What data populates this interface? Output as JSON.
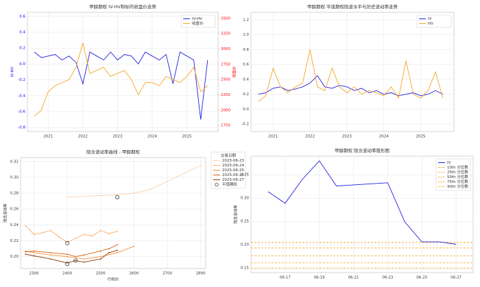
{
  "chart_data": [
    {
      "type": "line",
      "title": "甲醇期权 IV-HV和标的收盘价走势",
      "ylabel": "IV-HV",
      "y2label": "收盘价",
      "x": [
        2020.6,
        2020.8,
        2021.0,
        2021.2,
        2021.4,
        2021.6,
        2021.8,
        2022.0,
        2022.2,
        2022.4,
        2022.6,
        2022.8,
        2023.0,
        2023.2,
        2023.4,
        2023.6,
        2023.8,
        2024.0,
        2024.2,
        2024.4,
        2024.6,
        2024.8,
        2025.0,
        2025.2,
        2025.4,
        2025.6
      ],
      "series": [
        {
          "name": "IV-HV",
          "color": "#1f1fe0",
          "values": [
            0.15,
            0.08,
            0.1,
            0.12,
            0.05,
            0.1,
            0.02,
            -0.25,
            0.15,
            0.1,
            0.05,
            0.15,
            0.05,
            0.12,
            0.1,
            0.0,
            0.15,
            0.1,
            0.05,
            0.12,
            -0.25,
            0.15,
            0.1,
            0.05,
            -0.7,
            0.05
          ]
        },
        {
          "name": "收盘价",
          "color": "#f5a623",
          "axis": "y2",
          "values": [
            1900,
            2000,
            2300,
            2400,
            2450,
            2500,
            2700,
            3100,
            2600,
            2650,
            2700,
            2550,
            2600,
            2650,
            2500,
            2250,
            2450,
            2450,
            2400,
            2550,
            2500,
            2450,
            2550,
            2700,
            2300,
            2400
          ]
        }
      ],
      "xlim": [
        2020.4,
        2025.9
      ],
      "xticks": [
        2021,
        2022,
        2023,
        2024,
        2025
      ],
      "ylim": [
        -0.85,
        0.65
      ],
      "yticks": [
        -0.8,
        -0.6,
        -0.4,
        -0.2,
        {
          "value": 0,
          "label": "0.0"
        },
        0.2,
        0.4,
        0.6
      ],
      "y2lim": [
        1650,
        3600
      ],
      "y2ticks": [
        1750,
        2000,
        2250,
        2500,
        2750,
        3000,
        3250,
        3500
      ],
      "ytick_color": "blue",
      "y2tick_color": "red",
      "grid": true,
      "legend": "upper right"
    },
    {
      "type": "line",
      "title": "甲醇期权 平值期权隐波水平与历史波动率走势",
      "x": [
        2020.6,
        2020.8,
        2021.0,
        2021.2,
        2021.4,
        2021.6,
        2021.8,
        2022.0,
        2022.2,
        2022.4,
        2022.6,
        2022.8,
        2023.0,
        2023.2,
        2023.4,
        2023.6,
        2023.8,
        2024.0,
        2024.2,
        2024.4,
        2024.6,
        2024.8,
        2025.0,
        2025.2,
        2025.4,
        2025.6
      ],
      "series": [
        {
          "name": "IV",
          "color": "#1f1fe0",
          "values": [
            0.2,
            0.22,
            0.28,
            0.3,
            0.25,
            0.27,
            0.3,
            0.35,
            0.45,
            0.3,
            0.28,
            0.32,
            0.3,
            0.25,
            0.28,
            0.22,
            0.25,
            0.2,
            0.22,
            0.18,
            0.2,
            0.22,
            0.18,
            0.2,
            0.25,
            0.2
          ]
        },
        {
          "name": "HV",
          "color": "#f5a623",
          "values": [
            0.1,
            0.18,
            0.55,
            0.3,
            0.22,
            0.3,
            0.35,
            0.8,
            0.3,
            0.25,
            0.55,
            0.3,
            0.22,
            0.3,
            0.2,
            0.25,
            0.22,
            0.18,
            0.3,
            0.15,
            0.65,
            0.2,
            0.15,
            0.25,
            0.5,
            0.15
          ]
        }
      ],
      "xlim": [
        2020.4,
        2025.9
      ],
      "xticks": [
        2021,
        2022,
        2023,
        2024,
        2025
      ],
      "ylim": [
        -0.3,
        1.3
      ],
      "yticks": [
        -0.2,
        {
          "value": 0,
          "label": "0.0"
        },
        0.2,
        0.4,
        0.6,
        0.8,
        {
          "value": 1,
          "label": "1.0"
        },
        1.2
      ],
      "grid": true,
      "legend": "upper right"
    },
    {
      "type": "line",
      "title": "隐含波动率曲线 - 甲醇期权",
      "xlabel": "行权价",
      "ylabel": "隐含波动率",
      "legend_title": "交易日期",
      "series": [
        {
          "name": "2025-06-23",
          "color": "#fdd0a8",
          "x": [
            2400,
            2450,
            2500,
            2550,
            2600,
            2650,
            2700,
            2750,
            2800
          ],
          "values": [
            0.275,
            0.276,
            0.277,
            0.278,
            0.28,
            0.285,
            0.295,
            0.305,
            0.315
          ]
        },
        {
          "name": "2025-06-24",
          "color": "#fdae6b",
          "x": [
            2275,
            2300,
            2325,
            2350,
            2375,
            2400,
            2425,
            2450,
            2475,
            2500,
            2525,
            2550
          ],
          "values": [
            0.239,
            0.228,
            0.23,
            0.233,
            0.225,
            0.218,
            0.223,
            0.228,
            0.226,
            0.233,
            0.229,
            0.232
          ]
        },
        {
          "name": "2025-06-25",
          "color": "#f98e3a",
          "x": [
            2275,
            2300,
            2350,
            2400,
            2450,
            2500,
            2550,
            2600
          ],
          "values": [
            0.207,
            0.205,
            0.202,
            0.2,
            0.197,
            0.2,
            0.205,
            0.213
          ]
        },
        {
          "name": "2025-06-26",
          "color": "#d95f0e",
          "x": [
            2275,
            2300,
            2350,
            2400,
            2425,
            2450,
            2500,
            2525,
            2550
          ],
          "values": [
            0.206,
            0.207,
            0.205,
            0.203,
            0.2,
            0.202,
            0.207,
            0.21,
            0.215
          ]
        },
        {
          "name": "2025-06-27",
          "color": "#8c3a0a",
          "x": [
            2275,
            2300,
            2350,
            2400,
            2425,
            2450,
            2500,
            2525,
            2550
          ],
          "values": [
            0.203,
            0.201,
            0.197,
            0.192,
            0.195,
            0.193,
            0.197,
            0.205,
            0.208
          ]
        }
      ],
      "atm": {
        "name": "平值期权",
        "x": [
          2550,
          2400,
          2400,
          2425
        ],
        "values": [
          0.275,
          0.217,
          0.191,
          0.195
        ]
      },
      "markers": true,
      "xlim": [
        2260,
        2815
      ],
      "xticks": [
        2300,
        2400,
        2500,
        2600,
        2700,
        2800
      ],
      "ylim": [
        0.185,
        0.325
      ],
      "yticks": [
        {
          "value": 0.2,
          "label": "0.20"
        },
        0.22,
        0.24,
        0.26,
        0.28,
        {
          "value": 0.3,
          "label": "0.30"
        },
        0.32
      ],
      "grid": true,
      "legend": "outside right"
    },
    {
      "type": "line",
      "title": "甲醇期权 隐含波动率锥形图",
      "ylabel": "隐含波动率",
      "x": [
        "06-16",
        "06-17",
        "06-18",
        "06-19",
        "06-20",
        "06-23",
        "06-24",
        "06-25",
        "06-26",
        "06-27"
      ],
      "series": [
        {
          "name": "IV",
          "color": "#1f1fe0",
          "values": [
            0.314,
            0.289,
            0.34,
            0.38,
            0.326,
            0.333,
            0.249,
            0.206,
            0.206,
            0.201
          ]
        }
      ],
      "hlines": [
        {
          "name": "10th 分位数",
          "color": "#f5a623",
          "value": 0.149
        },
        {
          "name": "25th 分位数",
          "color": "#f5a623",
          "value": 0.161
        },
        {
          "name": "50th 分位数",
          "color": "#f5a623",
          "value": 0.176
        },
        {
          "name": "75th 分位数",
          "color": "#f5a623",
          "value": 0.193
        },
        {
          "name": "90th 分位数",
          "color": "#f5a623",
          "value": 0.205
        }
      ],
      "xlim": [
        "06-15",
        "06-28"
      ],
      "xticks": [
        "06-17",
        "06-19",
        "06-21",
        "06-23",
        "06-25",
        "06-27"
      ],
      "ylim": [
        0.14,
        0.39
      ],
      "yticks": [
        0.15,
        {
          "value": 0.2,
          "label": "0.20"
        },
        0.25,
        {
          "value": 0.3,
          "label": "0.30"
        },
        0.35
      ],
      "grid": true,
      "legend": "upper right"
    }
  ]
}
